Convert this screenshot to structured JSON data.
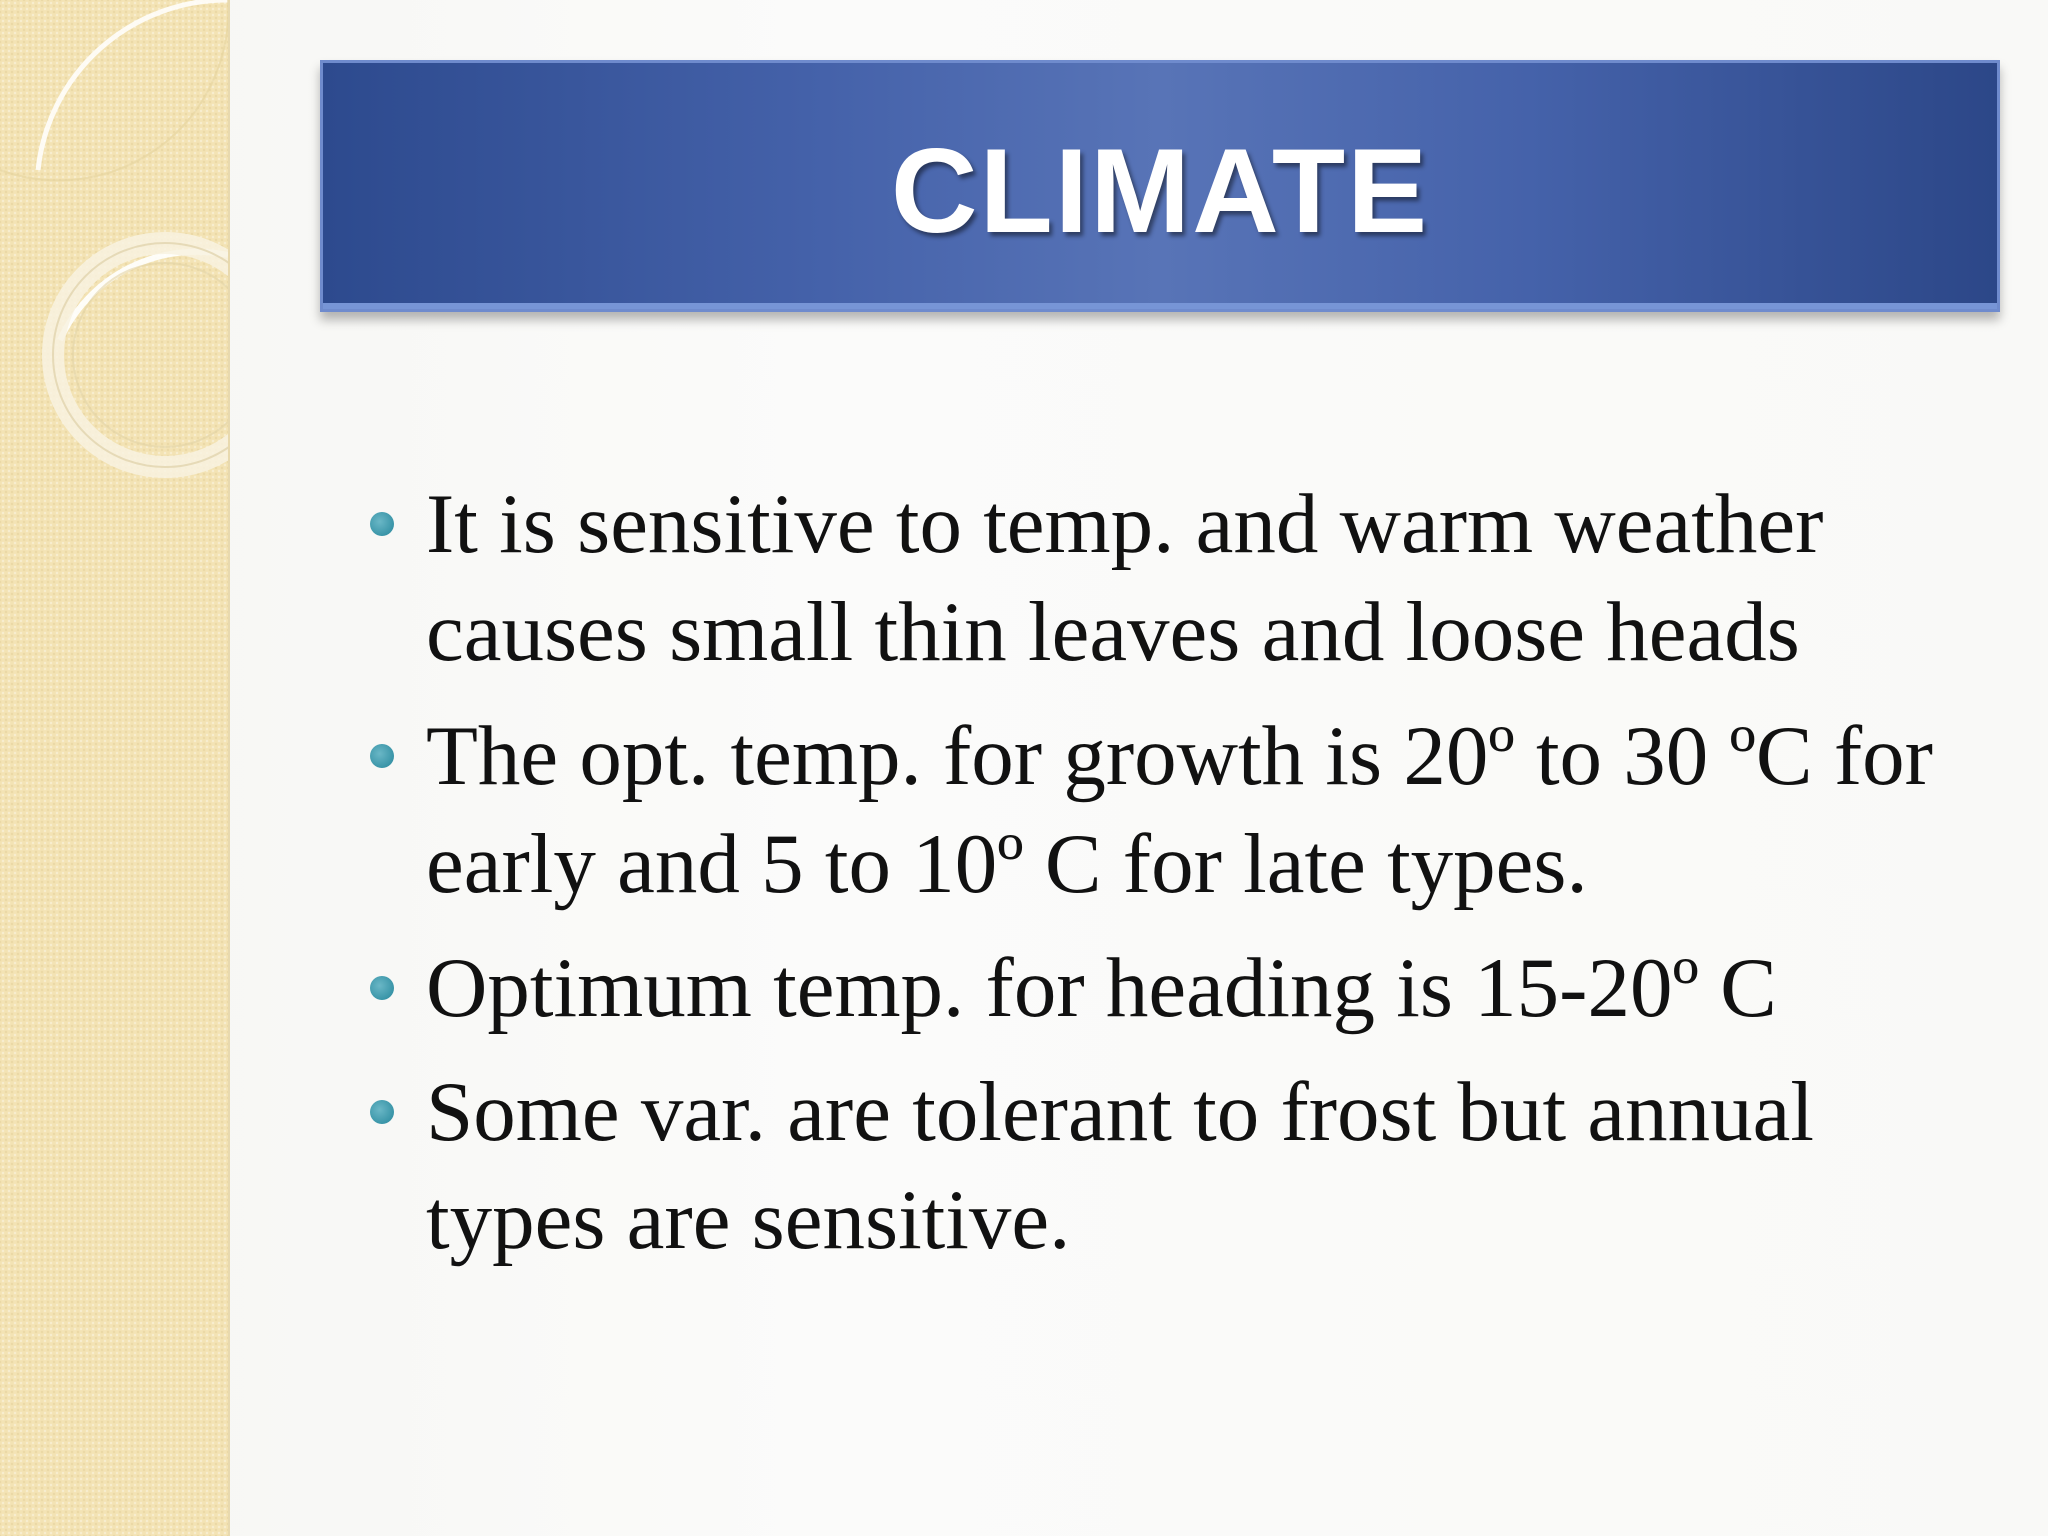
{
  "slide": {
    "title": "CLIMATE",
    "bullets": [
      "It is sensitive to temp. and warm weather causes small thin leaves and loose heads",
      "The opt. temp. for growth is 20º to 30 ºC for early and 5 to 10º C for late types.",
      "Optimum temp. for heading is 15-20º C",
      "Some var. are tolerant to frost but annual types are sensitive."
    ]
  },
  "colors": {
    "title_bar": "#4562aa",
    "title_text": "#ffffff",
    "bullet": "#3a95a8",
    "side_panel": "#f3e3b4"
  }
}
